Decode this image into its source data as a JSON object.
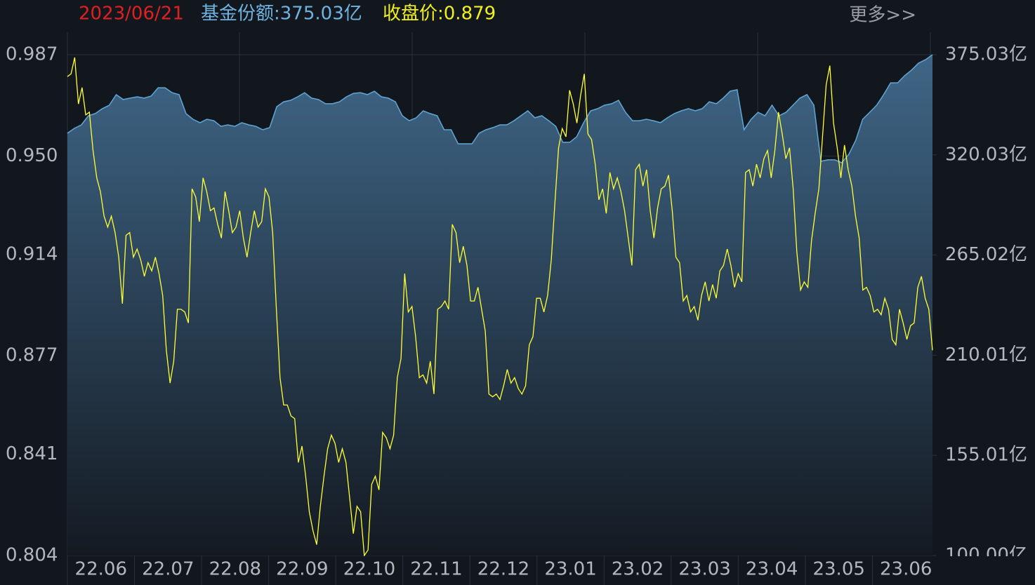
{
  "header": {
    "date": "2023/06/21",
    "share": "基金份额:375.03亿",
    "close": "收盘价:0.879",
    "more": "更多>>"
  },
  "chart_data": {
    "type": "line",
    "x_labels": [
      "22.06",
      "22.07",
      "22.08",
      "22.09",
      "22.10",
      "22.11",
      "22.12",
      "23.01",
      "23.02",
      "23.03",
      "23.04",
      "23.05",
      "23.06"
    ],
    "ylim": [
      0.804,
      0.987
    ],
    "yticks": [
      0.804,
      0.841,
      0.877,
      0.914,
      {
        "value": 0.95,
        "label": "0.950"
      },
      0.987
    ],
    "y2lim": [
      100,
      375.03
    ],
    "y2ticks": [
      {
        "value": 100,
        "label": "100.00亿"
      },
      {
        "value": 155.01,
        "label": "155.01亿"
      },
      {
        "value": 210.01,
        "label": "210.01亿"
      },
      {
        "value": 265.02,
        "label": "265.02亿"
      },
      {
        "value": 320.03,
        "label": "320.03亿"
      },
      {
        "value": 375.03,
        "label": "375.03亿"
      }
    ],
    "grid": true,
    "series": [
      {
        "type": "area",
        "axis": "y2",
        "color": "#5fa8d8",
        "values": [
          331.9,
          334.6,
          336.5,
          341.5,
          342.7,
          345.4,
          347.3,
          353.1,
          350.4,
          351.2,
          351.9,
          351.2,
          352.3,
          356.9,
          356.9,
          354.2,
          353.1,
          342.7,
          339.6,
          337.7,
          339.6,
          338.8,
          335.7,
          336.5,
          335.7,
          337.7,
          336.5,
          335.7,
          333.8,
          335.0,
          346.5,
          349.2,
          350.0,
          351.9,
          354.2,
          351.2,
          350.4,
          348.1,
          348.1,
          349.2,
          351.9,
          353.8,
          354.2,
          353.1,
          355.0,
          351.9,
          351.2,
          349.2,
          341.5,
          338.8,
          340.4,
          344.2,
          342.7,
          341.5,
          333.8,
          333.8,
          326.1,
          326.1,
          326.1,
          331.9,
          333.8,
          335.0,
          336.5,
          336.5,
          338.8,
          341.5,
          344.2,
          340.4,
          341.5,
          338.8,
          335.7,
          326.9,
          326.9,
          330.0,
          337.7,
          344.2,
          345.4,
          347.3,
          348.1,
          350.0,
          343.4,
          338.8,
          338.8,
          339.6,
          338.8,
          337.7,
          340.4,
          342.7,
          344.2,
          345.4,
          344.2,
          345.4,
          349.2,
          348.1,
          351.2,
          355.0,
          355.8,
          333.8,
          339.6,
          343.4,
          341.5,
          347.3,
          341.5,
          343.4,
          347.3,
          351.2,
          353.1,
          347.3,
          316.5,
          317.3,
          317.3,
          315.7,
          320.3,
          328.0,
          339.6,
          343.4,
          347.3,
          353.1,
          359.6,
          359.6,
          363.5,
          366.6,
          370.4,
          372.3,
          375.03
        ]
      },
      {
        "type": "line",
        "axis": "y",
        "color": "#ffff33",
        "values": [
          0.979,
          0.98,
          0.986,
          0.969,
          0.975,
          0.965,
          0.966,
          0.952,
          0.942,
          0.937,
          0.928,
          0.924,
          0.928,
          0.922,
          0.913,
          0.896,
          0.921,
          0.922,
          0.913,
          0.916,
          0.912,
          0.906,
          0.911,
          0.908,
          0.913,
          0.907,
          0.899,
          0.879,
          0.867,
          0.875,
          0.894,
          0.894,
          0.893,
          0.889,
          0.938,
          0.935,
          0.926,
          0.942,
          0.937,
          0.93,
          0.931,
          0.925,
          0.92,
          0.937,
          0.93,
          0.922,
          0.924,
          0.93,
          0.92,
          0.913,
          0.922,
          0.93,
          0.924,
          0.926,
          0.938,
          0.935,
          0.922,
          0.894,
          0.869,
          0.859,
          0.859,
          0.855,
          0.854,
          0.838,
          0.844,
          0.833,
          0.82,
          0.813,
          0.808,
          0.822,
          0.833,
          0.843,
          0.848,
          0.845,
          0.838,
          0.843,
          0.838,
          0.825,
          0.812,
          0.822,
          0.82,
          0.804,
          0.806,
          0.83,
          0.833,
          0.828,
          0.849,
          0.847,
          0.843,
          0.848,
          0.869,
          0.876,
          0.907,
          0.893,
          0.895,
          0.884,
          0.869,
          0.87,
          0.867,
          0.875,
          0.863,
          0.894,
          0.895,
          0.897,
          0.894,
          0.925,
          0.922,
          0.911,
          0.917,
          0.91,
          0.897,
          0.897,
          0.902,
          0.894,
          0.886,
          0.863,
          0.862,
          0.863,
          0.861,
          0.866,
          0.872,
          0.867,
          0.869,
          0.865,
          0.863,
          0.866,
          0.881,
          0.884,
          0.898,
          0.898,
          0.893,
          0.899,
          0.912,
          0.933,
          0.953,
          0.96,
          0.957,
          0.974,
          0.969,
          0.962,
          0.972,
          0.98,
          0.958,
          0.956,
          0.947,
          0.934,
          0.938,
          0.929,
          0.944,
          0.938,
          0.942,
          0.937,
          0.93,
          0.92,
          0.91,
          0.945,
          0.947,
          0.939,
          0.945,
          0.93,
          0.92,
          0.931,
          0.938,
          0.939,
          0.943,
          0.93,
          0.913,
          0.911,
          0.897,
          0.899,
          0.893,
          0.895,
          0.89,
          0.899,
          0.904,
          0.897,
          0.903,
          0.898,
          0.908,
          0.91,
          0.916,
          0.91,
          0.902,
          0.907,
          0.904,
          0.944,
          0.945,
          0.939,
          0.947,
          0.942,
          0.949,
          0.952,
          0.942,
          0.952,
          0.966,
          0.958,
          0.949,
          0.953,
          0.938,
          0.915,
          0.901,
          0.904,
          0.902,
          0.919,
          0.929,
          0.938,
          0.957,
          0.976,
          0.983,
          0.962,
          0.953,
          0.942,
          0.954,
          0.945,
          0.939,
          0.928,
          0.92,
          0.901,
          0.902,
          0.899,
          0.893,
          0.894,
          0.892,
          0.898,
          0.894,
          0.883,
          0.881,
          0.894,
          0.889,
          0.883,
          0.888,
          0.889,
          0.902,
          0.906,
          0.898,
          0.894,
          0.879
        ]
      }
    ]
  }
}
